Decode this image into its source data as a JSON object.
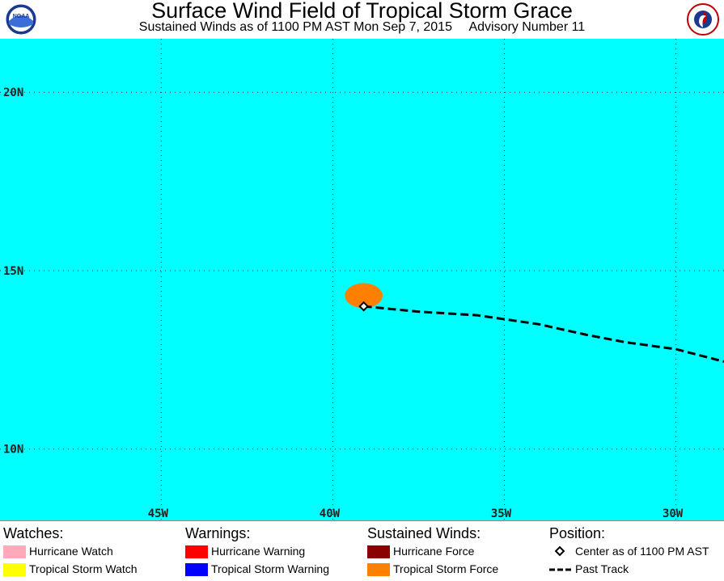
{
  "header": {
    "title": "Surface Wind Field of Tropical Storm Grace",
    "subtitle_left": "Sustained Winds as of 1100 PM AST Mon Sep 7, 2015",
    "subtitle_right": "Advisory Number 11"
  },
  "logos": {
    "left": "noaa-logo",
    "left_text": "NOAA",
    "right": "nws-logo"
  },
  "map": {
    "background_color": "#00ffff",
    "lon_range": [
      -49.7,
      -28.6
    ],
    "lat_range": [
      8.0,
      21.5
    ],
    "lat_labels": [
      {
        "value": 20,
        "label": "20N"
      },
      {
        "value": 15,
        "label": "15N"
      },
      {
        "value": 10,
        "label": "10N"
      }
    ],
    "lon_labels": [
      {
        "value": -45,
        "label": "45W"
      },
      {
        "value": -40,
        "label": "40W"
      },
      {
        "value": -35,
        "label": "35W"
      },
      {
        "value": -30,
        "label": "30W"
      }
    ],
    "storm_center": {
      "lon": -39.1,
      "lat": 14.0
    },
    "tropical_storm_force_area": {
      "center_lon": -39.1,
      "center_lat": 14.3,
      "radius_lon": 0.55,
      "radius_lat": 0.35,
      "color": "#ff8000"
    },
    "past_track": [
      {
        "lon": -39.1,
        "lat": 14.0
      },
      {
        "lon": -37.5,
        "lat": 13.85
      },
      {
        "lon": -35.8,
        "lat": 13.75
      },
      {
        "lon": -34.0,
        "lat": 13.5
      },
      {
        "lon": -32.6,
        "lat": 13.2
      },
      {
        "lon": -31.5,
        "lat": 13.0
      },
      {
        "lon": -30.0,
        "lat": 12.8
      },
      {
        "lon": -28.6,
        "lat": 12.45
      }
    ]
  },
  "legend": {
    "watches": {
      "heading": "Watches:",
      "items": [
        {
          "label": "Hurricane Watch",
          "color": "#ffaabb"
        },
        {
          "label": "Tropical Storm Watch",
          "color": "#ffff00"
        }
      ]
    },
    "warnings": {
      "heading": "Warnings:",
      "items": [
        {
          "label": "Hurricane Warning",
          "color": "#ff0000"
        },
        {
          "label": "Tropical Storm Warning",
          "color": "#0000ff"
        }
      ]
    },
    "winds": {
      "heading": "Sustained Winds:",
      "items": [
        {
          "label": "Hurricane Force",
          "color": "#8b0000"
        },
        {
          "label": "Tropical Storm Force",
          "color": "#ff8000"
        }
      ]
    },
    "position": {
      "heading": "Position:",
      "center_label": "Center as of 1100 PM AST",
      "track_label": "Past Track"
    }
  }
}
